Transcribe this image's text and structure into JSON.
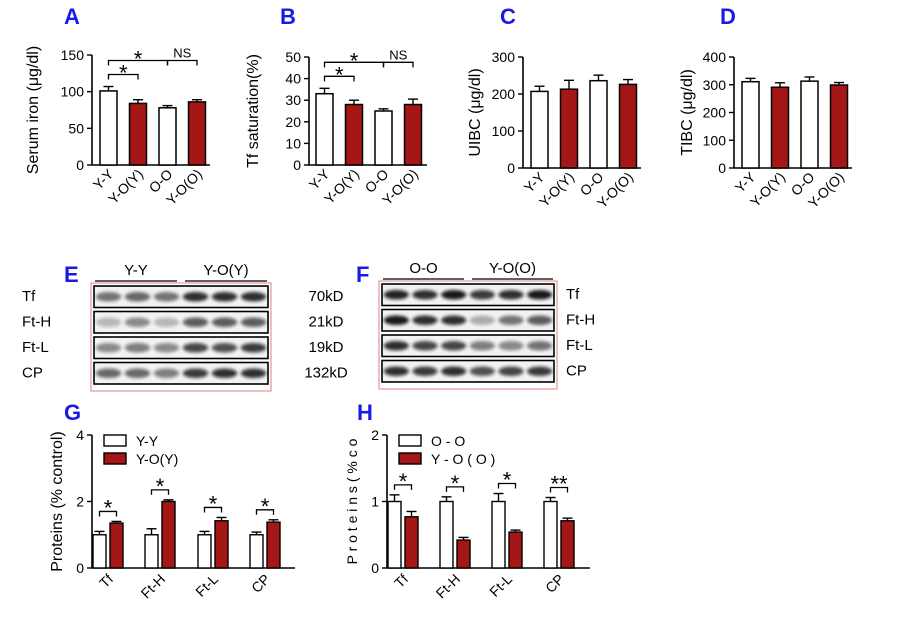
{
  "colors": {
    "control": "#ffffff",
    "treated": "#a51616",
    "letter": "#1a1ae6",
    "blot_frame": "#e08080"
  },
  "chart_data": [
    {
      "type": "bar",
      "panel": "A",
      "categories": [
        "Y-Y",
        "Y-O(Y)",
        "O-O",
        "Y-O(O)"
      ],
      "values": [
        101,
        84,
        78,
        86
      ],
      "errors": [
        6,
        5,
        3,
        3
      ],
      "fills": [
        "control",
        "treated",
        "control",
        "treated"
      ],
      "ylabel": "Serum iron (μg/dl)",
      "ylim": [
        0,
        150
      ],
      "yticks": [
        0,
        50,
        100,
        150
      ],
      "sig": [
        {
          "from": 0,
          "to": 1,
          "label": "*",
          "level": 0
        },
        {
          "from": 0,
          "to": 2,
          "label": "*",
          "level": 1
        },
        {
          "from": 2,
          "to": 3,
          "label": "NS",
          "level": 1
        }
      ]
    },
    {
      "type": "bar",
      "panel": "B",
      "categories": [
        "Y-Y",
        "Y-O(Y)",
        "O-O",
        "Y-O(O)"
      ],
      "values": [
        33,
        28,
        25,
        28
      ],
      "errors": [
        2.5,
        2,
        1,
        2.5
      ],
      "fills": [
        "control",
        "treated",
        "control",
        "treated"
      ],
      "ylabel": "Tf saturation(%)",
      "ylim": [
        0,
        50
      ],
      "yticks": [
        0,
        10,
        20,
        30,
        40,
        50
      ],
      "sig": [
        {
          "from": 0,
          "to": 1,
          "label": "*",
          "level": 0
        },
        {
          "from": 0,
          "to": 2,
          "label": "*",
          "level": 1
        },
        {
          "from": 2,
          "to": 3,
          "label": "NS",
          "level": 1
        }
      ]
    },
    {
      "type": "bar",
      "panel": "C",
      "categories": [
        "Y-Y",
        "Y-O(Y)",
        "O-O",
        "Y-O(O)"
      ],
      "values": [
        207,
        213,
        236,
        226
      ],
      "errors": [
        14,
        24,
        15,
        13
      ],
      "fills": [
        "control",
        "treated",
        "control",
        "treated"
      ],
      "ylabel": "UIBC (μg/dl)",
      "ylim": [
        0,
        300
      ],
      "yticks": [
        0,
        100,
        200,
        300
      ],
      "sig": []
    },
    {
      "type": "bar",
      "panel": "D",
      "categories": [
        "Y-Y",
        "Y-O(Y)",
        "O-O",
        "Y-O(O)"
      ],
      "values": [
        311,
        291,
        313,
        299
      ],
      "errors": [
        12,
        16,
        15,
        9
      ],
      "fills": [
        "control",
        "treated",
        "control",
        "treated"
      ],
      "ylabel": "TIBC (μg/dl)",
      "ylim": [
        0,
        400
      ],
      "yticks": [
        0,
        100,
        200,
        300,
        400
      ],
      "sig": []
    },
    {
      "type": "bar",
      "panel": "G",
      "categories": [
        "Tf",
        "Ft-H",
        "Ft-L",
        "CP"
      ],
      "series": [
        {
          "name": "Y-Y",
          "values": [
            1.0,
            1.0,
            1.0,
            1.0
          ],
          "errors": [
            0.1,
            0.18,
            0.1,
            0.08
          ]
        },
        {
          "name": "Y-O(Y)",
          "values": [
            1.35,
            2.0,
            1.42,
            1.38
          ],
          "errors": [
            0.05,
            0.05,
            0.1,
            0.07
          ]
        }
      ],
      "ylabel": "Proteins (% control)",
      "ylim": [
        0,
        4
      ],
      "yticks": [
        0,
        2,
        4
      ],
      "sig": [
        "*",
        "*",
        "*",
        "*"
      ]
    },
    {
      "type": "bar",
      "panel": "H",
      "categories": [
        "Tf",
        "Ft-H",
        "Ft-L",
        "CP"
      ],
      "series": [
        {
          "name": "O - O",
          "values": [
            1.0,
            1.0,
            1.0,
            1.0
          ],
          "errors": [
            0.1,
            0.07,
            0.12,
            0.06
          ]
        },
        {
          "name": "Y - O ( O )",
          "values": [
            0.77,
            0.42,
            0.54,
            0.71
          ],
          "errors": [
            0.08,
            0.04,
            0.03,
            0.04
          ]
        }
      ],
      "ylabel": "P r o t e i n s  ( %  c o",
      "ylim": [
        0,
        2
      ],
      "yticks": [
        0,
        1,
        2
      ],
      "sig": [
        "*",
        "*",
        "*",
        "**"
      ]
    }
  ],
  "blots": {
    "E": {
      "groups": [
        "Y-Y",
        "Y-O(Y)"
      ],
      "rows": [
        "Tf",
        "Ft-H",
        "Ft-L",
        "CP"
      ],
      "weights": [
        "70kD",
        "21kD",
        "19kD",
        "132kD"
      ],
      "intensity": [
        [
          0.55,
          0.6,
          0.55,
          0.85,
          0.85,
          0.85
        ],
        [
          0.25,
          0.45,
          0.25,
          0.65,
          0.65,
          0.65
        ],
        [
          0.45,
          0.5,
          0.45,
          0.75,
          0.7,
          0.8
        ],
        [
          0.6,
          0.6,
          0.5,
          0.8,
          0.85,
          0.85
        ]
      ]
    },
    "F": {
      "groups": [
        "O-O",
        "Y-O(O)"
      ],
      "rows": [
        "Tf",
        "Ft-H",
        "Ft-L",
        "CP"
      ],
      "intensity": [
        [
          0.9,
          0.85,
          0.95,
          0.8,
          0.85,
          0.95
        ],
        [
          0.95,
          0.85,
          0.85,
          0.3,
          0.55,
          0.65
        ],
        [
          0.85,
          0.75,
          0.75,
          0.5,
          0.45,
          0.55
        ],
        [
          0.85,
          0.8,
          0.85,
          0.7,
          0.75,
          0.8
        ]
      ]
    }
  }
}
